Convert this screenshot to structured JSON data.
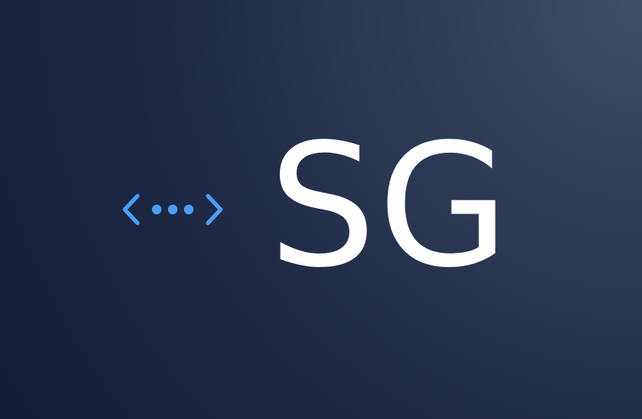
{
  "logo": {
    "monogram": "SG",
    "icon": "code-dots-icon",
    "colors": {
      "background_light": "#3f4d65",
      "background_dark": "#121c35",
      "accent": "#4a9ff5",
      "text": "#ffffff"
    }
  }
}
